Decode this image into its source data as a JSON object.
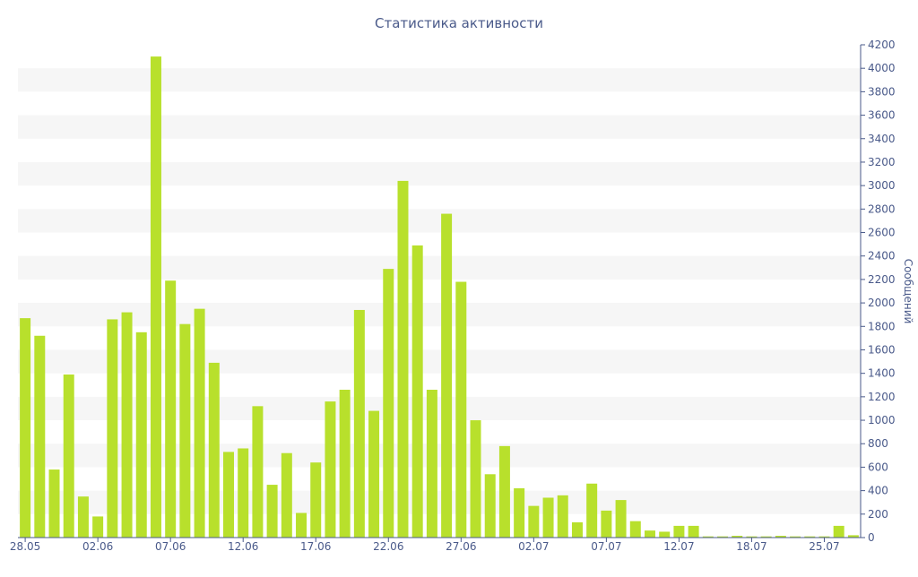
{
  "chart_data": {
    "type": "bar",
    "title": "Статистика активности",
    "xlabel": "",
    "ylabel": "Сообщений",
    "ylim": [
      0,
      4200
    ],
    "y_ticks": [
      0,
      200,
      400,
      600,
      800,
      1000,
      1200,
      1400,
      1600,
      1800,
      2000,
      2200,
      2400,
      2600,
      2800,
      3000,
      3200,
      3400,
      3600,
      3800,
      4000,
      4200
    ],
    "y_axis_side": "right",
    "x_tick_labels": [
      "28.05",
      "02.06",
      "07.06",
      "12.06",
      "17.06",
      "22.06",
      "27.06",
      "02.07",
      "07.07",
      "12.07",
      "18.07",
      "25.07"
    ],
    "x_tick_positions": [
      0,
      5,
      10,
      15,
      20,
      25,
      30,
      35,
      40,
      45,
      50,
      55
    ],
    "grid": "alternating horizontal bands",
    "bar_color": "#b8e02c",
    "band_color": "#f6f6f6",
    "axis_color": "#4a5a8a",
    "values": [
      1870,
      1720,
      580,
      1390,
      350,
      180,
      1860,
      1920,
      1750,
      4100,
      2190,
      1820,
      1950,
      1490,
      730,
      760,
      1120,
      450,
      720,
      210,
      640,
      1160,
      1260,
      1940,
      1080,
      2290,
      3040,
      2490,
      1260,
      2760,
      2180,
      1000,
      540,
      780,
      420,
      270,
      340,
      360,
      130,
      460,
      230,
      320,
      140,
      60,
      50,
      100,
      100,
      10,
      10,
      15,
      10,
      10,
      15,
      10,
      10,
      10,
      100,
      20
    ]
  }
}
